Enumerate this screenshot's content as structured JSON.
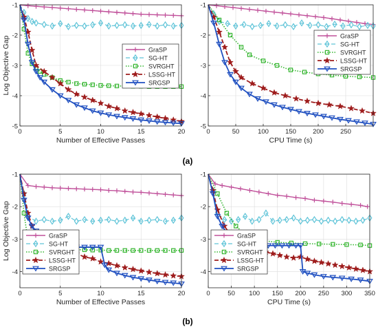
{
  "colors": {
    "GraSP": "#c0509a",
    "SG-HT": "#5fc4d8",
    "SVRGHT": "#33b52e",
    "LSSG-HT": "#9e1c1c",
    "SRGSP": "#1f4fc0"
  },
  "legend_labels": [
    "GraSP",
    "SG-HT",
    "SVRGHT",
    "LSSG-HT",
    "SRGSP"
  ],
  "markers": {
    "GraSP": "plus",
    "SG-HT": "diamond",
    "SVRGHT": "square",
    "LSSG-HT": "star",
    "SRGSP": "triangle-down"
  },
  "row_labels": [
    "(a)",
    "(b)"
  ],
  "chart_data": [
    {
      "type": "line",
      "panel": "a-left",
      "xlabel": "Number of Effective Passes",
      "ylabel": "Log Objective Gap",
      "xlim": [
        0,
        20
      ],
      "ylim": [
        -5,
        -1
      ],
      "xticks": [
        0,
        5,
        10,
        15,
        20
      ],
      "yticks": [
        -5,
        -4,
        -3,
        -2,
        -1
      ],
      "grid": true,
      "legend": "right",
      "series": [
        {
          "name": "GraSP",
          "x": [
            0,
            1,
            2,
            3,
            4,
            5,
            6,
            7,
            8,
            9,
            10,
            11,
            12,
            13,
            14,
            15,
            16,
            17,
            18,
            19,
            20
          ],
          "y": [
            -1,
            -1.03,
            -1.05,
            -1.07,
            -1.09,
            -1.11,
            -1.13,
            -1.15,
            -1.17,
            -1.19,
            -1.21,
            -1.23,
            -1.25,
            -1.27,
            -1.29,
            -1.31,
            -1.32,
            -1.33,
            -1.34,
            -1.35,
            -1.36
          ]
        },
        {
          "name": "SG-HT",
          "x": [
            0,
            0.5,
            1,
            1.5,
            2,
            3,
            4,
            5,
            6,
            7,
            8,
            9,
            10,
            11,
            12,
            13,
            14,
            15,
            16,
            17,
            18,
            19,
            20
          ],
          "y": [
            -1,
            -1.25,
            -1.45,
            -1.55,
            -1.6,
            -1.65,
            -1.7,
            -1.62,
            -1.72,
            -1.68,
            -1.7,
            -1.66,
            -1.6,
            -1.7,
            -1.68,
            -1.66,
            -1.7,
            -1.68,
            -1.65,
            -1.7,
            -1.66,
            -1.7,
            -1.68
          ]
        },
        {
          "name": "SVRGHT",
          "x": [
            0,
            0.5,
            1,
            1.5,
            2,
            2.5,
            3,
            4,
            5,
            6,
            7,
            8,
            9,
            10,
            11,
            12,
            13,
            14,
            15,
            16,
            17,
            18,
            19,
            20
          ],
          "y": [
            -1,
            -1.8,
            -2.6,
            -2.95,
            -3.1,
            -3.2,
            -3.3,
            -3.4,
            -3.5,
            -3.55,
            -3.6,
            -3.62,
            -3.64,
            -3.66,
            -3.67,
            -3.68,
            -3.68,
            -3.69,
            -3.69,
            -3.7,
            -3.7,
            -3.7,
            -3.7,
            -3.7
          ]
        },
        {
          "name": "LSSG-HT",
          "x": [
            0,
            0.5,
            1,
            1.5,
            2,
            3,
            4,
            5,
            6,
            7,
            8,
            9,
            10,
            11,
            12,
            13,
            14,
            15,
            16,
            17,
            18,
            19,
            20
          ],
          "y": [
            -1,
            -1.4,
            -1.9,
            -2.5,
            -3.0,
            -3.2,
            -3.4,
            -3.6,
            -3.8,
            -3.95,
            -4.05,
            -4.15,
            -4.25,
            -4.35,
            -4.42,
            -4.5,
            -4.55,
            -4.6,
            -4.65,
            -4.7,
            -4.75,
            -4.8,
            -4.85
          ]
        },
        {
          "name": "SRGSP",
          "x": [
            0,
            0.5,
            1,
            1.5,
            2,
            2.5,
            3,
            4,
            5,
            6,
            7,
            8,
            9,
            10,
            11,
            12,
            13,
            14,
            15,
            16,
            17,
            18,
            19,
            20
          ],
          "y": [
            -1,
            -1.5,
            -2.3,
            -2.9,
            -3.2,
            -3.4,
            -3.55,
            -3.8,
            -4.0,
            -4.15,
            -4.3,
            -4.4,
            -4.5,
            -4.57,
            -4.63,
            -4.68,
            -4.72,
            -4.76,
            -4.8,
            -4.83,
            -4.86,
            -4.88,
            -4.9,
            -4.92
          ]
        }
      ]
    },
    {
      "type": "line",
      "panel": "a-right",
      "xlabel": "CPU Time (s)",
      "ylabel": "",
      "xlim": [
        0,
        300
      ],
      "ylim": [
        -5,
        -1
      ],
      "xticks": [
        0,
        50,
        100,
        150,
        200,
        250
      ],
      "yticks": [
        -5,
        -4,
        -3,
        -2,
        -1
      ],
      "grid": true,
      "legend": "top-right",
      "series": [
        {
          "name": "GraSP",
          "x": [
            0,
            15,
            30,
            45,
            60,
            75,
            90,
            105,
            120,
            135,
            150,
            165,
            180,
            195,
            210,
            225,
            240,
            255,
            270,
            285,
            300
          ],
          "y": [
            -1,
            -1.03,
            -1.06,
            -1.09,
            -1.12,
            -1.15,
            -1.18,
            -1.21,
            -1.24,
            -1.27,
            -1.3,
            -1.33,
            -1.36,
            -1.39,
            -1.42,
            -1.46,
            -1.5,
            -1.54,
            -1.58,
            -1.62,
            -1.65
          ]
        },
        {
          "name": "SG-HT",
          "x": [
            0,
            10,
            20,
            35,
            50,
            65,
            80,
            95,
            110,
            125,
            140,
            155,
            170,
            185,
            200,
            215,
            230,
            245,
            260,
            275,
            290,
            300
          ],
          "y": [
            -1,
            -1.3,
            -1.55,
            -1.62,
            -1.7,
            -1.65,
            -1.72,
            -1.68,
            -1.62,
            -1.7,
            -1.66,
            -1.72,
            -1.6,
            -1.68,
            -1.66,
            -1.72,
            -1.64,
            -1.7,
            -1.66,
            -1.72,
            -1.68,
            -1.7
          ]
        },
        {
          "name": "SVRGHT",
          "x": [
            0,
            20,
            40,
            60,
            75,
            100,
            125,
            150,
            175,
            200,
            225,
            250,
            275,
            300
          ],
          "y": [
            -1,
            -1.5,
            -2.0,
            -2.4,
            -2.65,
            -2.85,
            -3.0,
            -3.15,
            -3.22,
            -3.28,
            -3.32,
            -3.36,
            -3.38,
            -3.4
          ]
        },
        {
          "name": "LSSG-HT",
          "x": [
            0,
            10,
            20,
            30,
            40,
            50,
            60,
            80,
            100,
            120,
            140,
            160,
            180,
            200,
            220,
            240,
            260,
            280,
            300
          ],
          "y": [
            -1,
            -1.4,
            -1.9,
            -2.4,
            -2.9,
            -3.2,
            -3.4,
            -3.6,
            -3.75,
            -3.9,
            -4.0,
            -4.1,
            -4.18,
            -4.25,
            -4.3,
            -4.35,
            -4.42,
            -4.5,
            -4.58
          ]
        },
        {
          "name": "SRGSP",
          "x": [
            0,
            10,
            20,
            30,
            40,
            50,
            60,
            75,
            90,
            105,
            120,
            135,
            150,
            165,
            180,
            195,
            210,
            225,
            240,
            255,
            270,
            285,
            300
          ],
          "y": [
            -1,
            -1.6,
            -2.3,
            -2.9,
            -3.3,
            -3.55,
            -3.75,
            -3.95,
            -4.1,
            -4.2,
            -4.3,
            -4.38,
            -4.45,
            -4.52,
            -4.58,
            -4.63,
            -4.68,
            -4.73,
            -4.78,
            -4.82,
            -4.86,
            -4.9,
            -4.94
          ]
        }
      ]
    },
    {
      "type": "line",
      "panel": "b-left",
      "xlabel": "Number of Effective Passes",
      "ylabel": "Log Objective Gap",
      "xlim": [
        0,
        20
      ],
      "ylim": [
        -4.5,
        -1
      ],
      "xticks": [
        0,
        5,
        10,
        15,
        20
      ],
      "yticks": [
        -4,
        -3,
        -2,
        -1
      ],
      "grid": true,
      "legend": "bottom-left",
      "series": [
        {
          "name": "GraSP",
          "x": [
            0,
            1,
            2,
            3,
            4,
            5,
            6,
            7,
            8,
            9,
            10,
            11,
            12,
            13,
            14,
            15,
            16,
            17,
            18,
            19,
            20
          ],
          "y": [
            -1,
            -1.35,
            -1.38,
            -1.4,
            -1.42,
            -1.43,
            -1.44,
            -1.45,
            -1.46,
            -1.47,
            -1.48,
            -1.5,
            -1.51,
            -1.53,
            -1.55,
            -1.56,
            -1.58,
            -1.6,
            -1.62,
            -1.64,
            -1.66
          ]
        },
        {
          "name": "SG-HT",
          "x": [
            0,
            0.5,
            1,
            2,
            3,
            4,
            5,
            6,
            7,
            8,
            9,
            10,
            11,
            12,
            13,
            14,
            15,
            16,
            17,
            18,
            19,
            20
          ],
          "y": [
            -1,
            -1.6,
            -2.3,
            -2.45,
            -2.4,
            -2.45,
            -2.42,
            -2.3,
            -2.45,
            -2.4,
            -2.45,
            -2.42,
            -2.4,
            -2.45,
            -2.42,
            -2.35,
            -2.45,
            -2.42,
            -2.4,
            -2.45,
            -2.42,
            -2.35
          ]
        },
        {
          "name": "SVRGHT",
          "x": [
            0,
            0.5,
            1,
            2,
            3,
            4,
            5,
            6,
            7,
            8,
            9,
            10,
            11,
            12,
            13,
            14,
            15,
            16,
            17,
            18,
            19,
            20
          ],
          "y": [
            -1,
            -2.2,
            -3.05,
            -3.2,
            -3.25,
            -3.28,
            -3.3,
            -3.32,
            -3.33,
            -3.33,
            -3.34,
            -3.34,
            -3.35,
            -3.35,
            -3.35,
            -3.35,
            -3.35,
            -3.35,
            -3.35,
            -3.35,
            -3.35,
            -3.35
          ]
        },
        {
          "name": "LSSG-HT",
          "x": [
            0,
            0.5,
            1,
            1.5,
            2,
            3,
            4,
            5,
            6,
            7,
            8,
            9,
            10,
            11,
            12,
            13,
            14,
            15,
            16,
            17,
            18,
            19,
            20
          ],
          "y": [
            -1,
            -1.6,
            -2.2,
            -2.6,
            -2.8,
            -3.0,
            -3.15,
            -3.25,
            -3.35,
            -3.45,
            -3.55,
            -3.6,
            -3.7,
            -3.75,
            -3.82,
            -3.88,
            -3.93,
            -3.98,
            -4.02,
            -4.06,
            -4.1,
            -4.13,
            -4.15
          ]
        },
        {
          "name": "SRGSP",
          "x": [
            0,
            0.5,
            1,
            1.5,
            2,
            3,
            4,
            5,
            6,
            7,
            8,
            9,
            10,
            10.5,
            11,
            12,
            13,
            14,
            15,
            16,
            17,
            18,
            19,
            20
          ],
          "y": [
            -1,
            -1.8,
            -2.35,
            -2.6,
            -2.75,
            -2.95,
            -3.05,
            -3.15,
            -3.2,
            -3.25,
            -3.25,
            -3.25,
            -3.25,
            -3.8,
            -3.95,
            -4.05,
            -4.12,
            -4.18,
            -4.22,
            -4.26,
            -4.3,
            -4.33,
            -4.35,
            -4.38
          ]
        }
      ]
    },
    {
      "type": "line",
      "panel": "b-right",
      "xlabel": "CPU Time (s)",
      "ylabel": "",
      "xlim": [
        0,
        350
      ],
      "ylim": [
        -4.5,
        -1
      ],
      "xticks": [
        0,
        50,
        100,
        150,
        200,
        250,
        300,
        350
      ],
      "yticks": [
        -4,
        -3,
        -2,
        -1
      ],
      "grid": true,
      "legend": "bottom-left",
      "series": [
        {
          "name": "GraSP",
          "x": [
            0,
            15,
            30,
            50,
            70,
            90,
            110,
            130,
            150,
            170,
            190,
            210,
            230,
            250,
            270,
            290,
            310,
            330,
            345
          ],
          "y": [
            -1,
            -1.3,
            -1.35,
            -1.4,
            -1.45,
            -1.5,
            -1.55,
            -1.6,
            -1.65,
            -1.68,
            -1.72,
            -1.75,
            -1.8,
            -1.83,
            -1.86,
            -1.9,
            -1.93,
            -1.96,
            -2.0
          ]
        },
        {
          "name": "SG-HT",
          "x": [
            0,
            10,
            20,
            35,
            50,
            65,
            80,
            95,
            110,
            125,
            140,
            155,
            170,
            185,
            200,
            215,
            230,
            245,
            260,
            275,
            290,
            305,
            320,
            335,
            350
          ],
          "y": [
            -1,
            -1.5,
            -2.2,
            -2.4,
            -2.45,
            -2.4,
            -2.3,
            -2.45,
            -2.4,
            -2.2,
            -2.45,
            -2.42,
            -2.4,
            -2.35,
            -2.45,
            -2.42,
            -2.4,
            -2.45,
            -2.42,
            -2.45,
            -2.4,
            -2.42,
            -2.45,
            -2.42,
            -2.35
          ]
        },
        {
          "name": "SVRGHT",
          "x": [
            0,
            20,
            40,
            60,
            80,
            100,
            120,
            150,
            180,
            210,
            240,
            270,
            300,
            330,
            350
          ],
          "y": [
            -1,
            -1.6,
            -2.2,
            -2.6,
            -2.85,
            -3.0,
            -3.05,
            -3.1,
            -3.12,
            -3.14,
            -3.15,
            -3.16,
            -3.17,
            -3.18,
            -3.2
          ]
        },
        {
          "name": "LSSG-HT",
          "x": [
            0,
            10,
            20,
            35,
            50,
            65,
            80,
            95,
            110,
            125,
            140,
            155,
            170,
            185,
            200,
            215,
            230,
            245,
            260,
            275,
            290,
            305,
            320,
            335,
            350
          ],
          "y": [
            -1,
            -1.5,
            -2.1,
            -2.6,
            -2.9,
            -3.05,
            -3.15,
            -3.25,
            -3.35,
            -3.4,
            -3.45,
            -3.5,
            -3.55,
            -3.58,
            -3.55,
            -3.62,
            -3.68,
            -3.72,
            -3.76,
            -3.8,
            -3.84,
            -3.88,
            -3.92,
            -3.96,
            -4.0
          ]
        },
        {
          "name": "SRGSP",
          "x": [
            0,
            10,
            20,
            30,
            40,
            55,
            70,
            85,
            100,
            115,
            130,
            145,
            160,
            175,
            190,
            200,
            205,
            215,
            230,
            250,
            270,
            290,
            310,
            330,
            350
          ],
          "y": [
            -1,
            -1.6,
            -2.3,
            -2.6,
            -2.8,
            -2.95,
            -3.05,
            -3.1,
            -3.15,
            -3.18,
            -3.2,
            -3.2,
            -3.2,
            -3.2,
            -3.2,
            -3.2,
            -4.0,
            -4.05,
            -4.1,
            -4.15,
            -4.18,
            -4.2,
            -4.23,
            -4.26,
            -4.3
          ]
        }
      ]
    }
  ]
}
